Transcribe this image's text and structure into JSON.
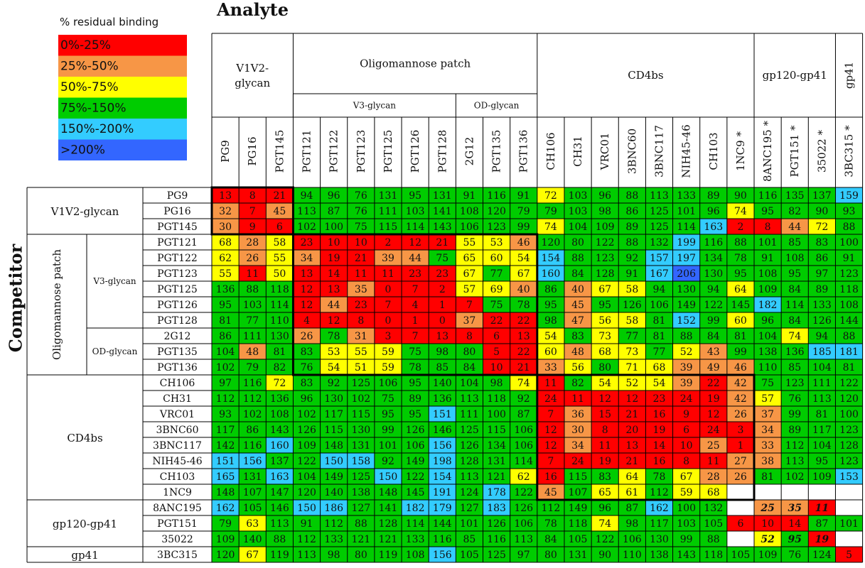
{
  "chart_data": {
    "type": "heatmap",
    "title": "Analyte",
    "ylabel": "Competitor",
    "legend": {
      "title": "% residual binding",
      "items": [
        {
          "label": "0%-25%",
          "color": "#ff0000"
        },
        {
          "label": "25%-50%",
          "color": "#f79646"
        },
        {
          "label": "50%-75%",
          "color": "#ffff00"
        },
        {
          "label": "75%-150%",
          "color": "#00cc00"
        },
        {
          "label": "150%-200%",
          "color": "#33ccff"
        },
        {
          "label": ">200%",
          "color": "#3366ff"
        }
      ]
    },
    "column_groups": [
      {
        "label": "V1V2-\nglycan",
        "span": 3
      },
      {
        "label": "Oligomannose patch",
        "span": 9,
        "subgroups": [
          {
            "label": "V3-glycan",
            "span": 6
          },
          {
            "label": "OD-glycan",
            "span": 3
          }
        ]
      },
      {
        "label": "CD4bs",
        "span": 8
      },
      {
        "label": "gp120-gp41",
        "span": 3
      },
      {
        "label": "gp41",
        "span": 1
      }
    ],
    "columns": [
      "PG9",
      "PG16",
      "PGT145",
      "PGT121",
      "PGT122",
      "PGT123",
      "PGT125",
      "PGT126",
      "PGT128",
      "2G12",
      "PGT135",
      "PGT136",
      "CH106",
      "CH31",
      "VRC01",
      "3BNC60",
      "3BNC117",
      "NIH45-46",
      "CH103",
      "1NC9 *",
      "8ANC195 *",
      "PGT151 *",
      "35022 *",
      "3BC315 *"
    ],
    "row_groups": [
      {
        "label": "V1V2-glycan",
        "span": 3
      },
      {
        "label": "Oligomannose patch",
        "span": 9,
        "subgroups": [
          {
            "label": "V3-glycan",
            "span": 6
          },
          {
            "label": "OD-glycan",
            "span": 3
          }
        ]
      },
      {
        "label": "CD4bs",
        "span": 8
      },
      {
        "label": "gp120-gp41",
        "span": 3
      },
      {
        "label": "gp41",
        "span": 1
      }
    ],
    "rows": [
      "PG9",
      "PG16",
      "PGT145",
      "PGT121",
      "PGT122",
      "PGT123",
      "PGT125",
      "PGT126",
      "PGT128",
      "2G12",
      "PGT135",
      "PGT136",
      "CH106",
      "CH31",
      "VRC01",
      "3BNC60",
      "3BNC117",
      "NIH45-46",
      "CH103",
      "1NC9",
      "8ANC195",
      "PGT151",
      "35022",
      "3BC315"
    ],
    "values": [
      [
        13,
        8,
        21,
        94,
        96,
        76,
        131,
        95,
        131,
        91,
        116,
        91,
        72,
        103,
        96,
        88,
        113,
        133,
        89,
        90,
        116,
        135,
        137,
        159
      ],
      [
        32,
        7,
        45,
        113,
        87,
        76,
        111,
        103,
        141,
        108,
        120,
        79,
        79,
        103,
        98,
        86,
        125,
        101,
        96,
        74,
        95,
        82,
        90,
        93
      ],
      [
        30,
        9,
        6,
        102,
        100,
        75,
        115,
        114,
        143,
        106,
        123,
        99,
        74,
        104,
        109,
        89,
        125,
        114,
        163,
        2,
        8,
        44,
        72,
        88
      ],
      [
        68,
        28,
        58,
        23,
        10,
        10,
        2,
        12,
        21,
        55,
        53,
        46,
        120,
        80,
        122,
        88,
        132,
        199,
        116,
        88,
        101,
        85,
        83,
        100
      ],
      [
        62,
        26,
        55,
        34,
        19,
        21,
        39,
        44,
        75,
        65,
        60,
        54,
        154,
        88,
        123,
        92,
        157,
        197,
        134,
        78,
        91,
        108,
        86,
        91
      ],
      [
        55,
        11,
        50,
        13,
        14,
        11,
        11,
        23,
        23,
        67,
        77,
        67,
        160,
        84,
        128,
        91,
        167,
        206,
        130,
        95,
        108,
        95,
        97,
        123
      ],
      [
        136,
        88,
        118,
        12,
        13,
        35,
        0,
        7,
        2,
        57,
        69,
        40,
        86,
        40,
        67,
        58,
        94,
        130,
        94,
        64,
        109,
        84,
        89,
        118
      ],
      [
        95,
        103,
        114,
        12,
        44,
        23,
        7,
        4,
        1,
        7,
        75,
        78,
        95,
        45,
        95,
        126,
        106,
        149,
        122,
        145,
        182,
        114,
        133,
        108
      ],
      [
        81,
        77,
        110,
        4,
        12,
        8,
        0,
        1,
        0,
        37,
        22,
        22,
        98,
        47,
        56,
        58,
        81,
        152,
        99,
        60,
        96,
        84,
        126,
        144
      ],
      [
        86,
        111,
        130,
        26,
        78,
        31,
        3,
        7,
        13,
        8,
        6,
        13,
        54,
        83,
        73,
        77,
        81,
        88,
        84,
        81,
        104,
        74,
        94,
        88
      ],
      [
        104,
        48,
        81,
        83,
        53,
        55,
        59,
        75,
        98,
        80,
        5,
        22,
        60,
        48,
        68,
        73,
        77,
        52,
        43,
        99,
        138,
        136,
        185,
        181
      ],
      [
        102,
        79,
        82,
        76,
        54,
        51,
        59,
        78,
        85,
        84,
        10,
        21,
        33,
        56,
        80,
        71,
        68,
        39,
        49,
        46,
        110,
        85,
        104,
        81
      ],
      [
        97,
        116,
        72,
        83,
        92,
        125,
        106,
        95,
        140,
        104,
        98,
        74,
        11,
        82,
        54,
        52,
        54,
        39,
        22,
        42,
        75,
        123,
        111,
        122
      ],
      [
        112,
        112,
        136,
        96,
        130,
        102,
        75,
        89,
        136,
        113,
        118,
        92,
        24,
        11,
        12,
        12,
        23,
        24,
        19,
        42,
        57,
        76,
        113,
        120
      ],
      [
        93,
        102,
        108,
        102,
        117,
        115,
        95,
        95,
        151,
        111,
        100,
        87,
        7,
        36,
        15,
        21,
        16,
        9,
        12,
        26,
        37,
        99,
        81,
        100
      ],
      [
        117,
        86,
        143,
        126,
        115,
        130,
        99,
        126,
        146,
        125,
        115,
        106,
        12,
        30,
        8,
        20,
        19,
        6,
        24,
        3,
        34,
        89,
        117,
        123
      ],
      [
        142,
        116,
        160,
        109,
        148,
        131,
        101,
        106,
        156,
        126,
        134,
        106,
        12,
        34,
        11,
        13,
        14,
        10,
        25,
        1,
        33,
        112,
        104,
        128
      ],
      [
        151,
        156,
        137,
        122,
        150,
        158,
        92,
        149,
        198,
        128,
        131,
        114,
        7,
        24,
        19,
        21,
        16,
        8,
        11,
        27,
        38,
        113,
        95,
        123
      ],
      [
        165,
        131,
        163,
        104,
        149,
        125,
        150,
        122,
        154,
        113,
        121,
        62,
        16,
        115,
        83,
        64,
        78,
        67,
        28,
        26,
        81,
        102,
        109,
        153
      ],
      [
        148,
        107,
        147,
        120,
        140,
        138,
        148,
        145,
        191,
        124,
        178,
        122,
        45,
        107,
        65,
        61,
        112,
        59,
        68,
        null,
        null,
        null,
        null,
        null
      ],
      [
        162,
        105,
        146,
        150,
        186,
        127,
        141,
        182,
        179,
        127,
        183,
        126,
        112,
        149,
        96,
        87,
        162,
        100,
        132,
        null,
        25,
        35,
        11,
        null
      ],
      [
        79,
        63,
        113,
        91,
        112,
        88,
        128,
        114,
        144,
        101,
        126,
        106,
        78,
        118,
        74,
        98,
        117,
        103,
        105,
        6,
        10,
        14,
        87,
        101
      ],
      [
        109,
        140,
        88,
        112,
        133,
        121,
        121,
        133,
        116,
        85,
        116,
        113,
        84,
        105,
        122,
        106,
        130,
        99,
        88,
        null,
        52,
        95,
        19,
        null
      ],
      [
        120,
        67,
        119,
        113,
        98,
        80,
        119,
        108,
        156,
        105,
        125,
        97,
        80,
        131,
        90,
        110,
        138,
        143,
        118,
        105,
        109,
        76,
        124,
        5
      ]
    ]
  }
}
